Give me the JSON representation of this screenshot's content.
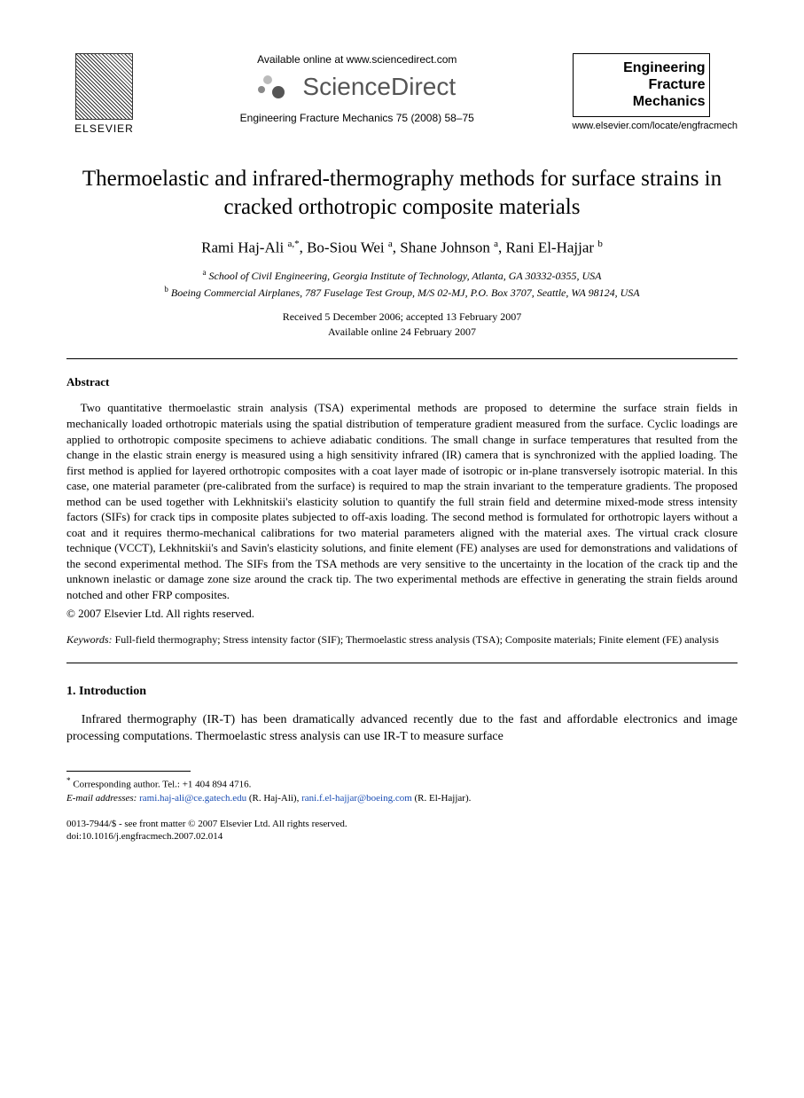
{
  "header": {
    "publisher_label": "ELSEVIER",
    "available_text": "Available online at www.sciencedirect.com",
    "sciencedirect_text": "ScienceDirect",
    "journal_reference": "Engineering Fracture Mechanics 75 (2008) 58–75",
    "journal_box_line1": "Engineering",
    "journal_box_line2": "Fracture",
    "journal_box_line3": "Mechanics",
    "locate_url": "www.elsevier.com/locate/engfracmech"
  },
  "article": {
    "title": "Thermoelastic and infrared-thermography methods for surface strains in cracked orthotropic composite materials",
    "authors_html": "Rami Haj-Ali <sup>a,*</sup>, Bo-Siou Wei <sup>a</sup>, Shane Johnson <sup>a</sup>, Rani El-Hajjar <sup>b</sup>",
    "affiliation_a": "School of Civil Engineering, Georgia Institute of Technology, Atlanta, GA 30332-0355, USA",
    "affiliation_b": "Boeing Commercial Airplanes, 787 Fuselage Test Group, M/S 02-MJ, P.O. Box 3707, Seattle, WA 98124, USA",
    "received": "Received 5 December 2006; accepted 13 February 2007",
    "available_online": "Available online 24 February 2007"
  },
  "abstract": {
    "heading": "Abstract",
    "body": "Two quantitative thermoelastic strain analysis (TSA) experimental methods are proposed to determine the surface strain fields in mechanically loaded orthotropic materials using the spatial distribution of temperature gradient measured from the surface. Cyclic loadings are applied to orthotropic composite specimens to achieve adiabatic conditions. The small change in surface temperatures that resulted from the change in the elastic strain energy is measured using a high sensitivity infrared (IR) camera that is synchronized with the applied loading. The first method is applied for layered orthotropic composites with a coat layer made of isotropic or in-plane transversely isotropic material. In this case, one material parameter (pre-calibrated from the surface) is required to map the strain invariant to the temperature gradients. The proposed method can be used together with Lekhnitskii's elasticity solution to quantify the full strain field and determine mixed-mode stress intensity factors (SIFs) for crack tips in composite plates subjected to off-axis loading. The second method is formulated for orthotropic layers without a coat and it requires thermo-mechanical calibrations for two material parameters aligned with the material axes. The virtual crack closure technique (VCCT), Lekhnitskii's and Savin's elasticity solutions, and finite element (FE) analyses are used for demonstrations and validations of the second experimental method. The SIFs from the TSA methods are very sensitive to the uncertainty in the location of the crack tip and the unknown inelastic or damage zone size around the crack tip. The two experimental methods are effective in generating the strain fields around notched and other FRP composites.",
    "copyright": "© 2007 Elsevier Ltd. All rights reserved."
  },
  "keywords": {
    "label": "Keywords:",
    "text": "Full-field thermography; Stress intensity factor (SIF); Thermoelastic stress analysis (TSA); Composite materials; Finite element (FE) analysis"
  },
  "introduction": {
    "heading": "1. Introduction",
    "body": "Infrared thermography (IR-T) has been dramatically advanced recently due to the fast and affordable electronics and image processing computations. Thermoelastic stress analysis can use IR-T to measure surface"
  },
  "footnotes": {
    "corresponding": "Corresponding author. Tel.: +1 404 894 4716.",
    "email_label": "E-mail addresses:",
    "email1": "rami.haj-ali@ce.gatech.edu",
    "email1_who": "(R. Haj-Ali),",
    "email2": "rani.f.el-hajjar@boeing.com",
    "email2_who": "(R. El-Hajjar)."
  },
  "footer": {
    "line1": "0013-7944/$ - see front matter © 2007 Elsevier Ltd. All rights reserved.",
    "line2": "doi:10.1016/j.engfracmech.2007.02.014"
  },
  "colors": {
    "text": "#000000",
    "link": "#1a4db3",
    "background": "#ffffff",
    "sd_gray": "#555555"
  },
  "fonts": {
    "body_family": "Times New Roman",
    "header_family": "Arial",
    "title_size_pt": 19,
    "author_size_pt": 13,
    "body_size_pt": 10,
    "footnote_size_pt": 8
  }
}
